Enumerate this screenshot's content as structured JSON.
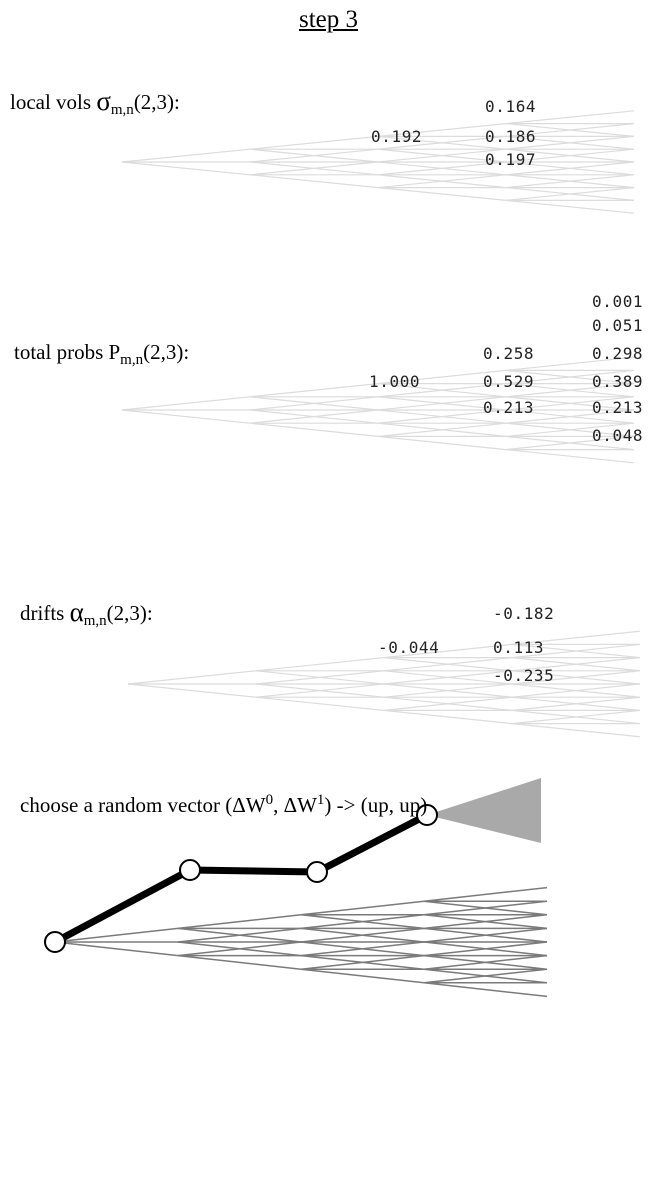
{
  "title": "step 3",
  "panels": {
    "local_vols": {
      "label_text": "local vols ",
      "symbol": "σ",
      "subscript": "m,n",
      "args": "(2,3):",
      "values": [
        "0.192",
        "0.164",
        "0.186",
        "0.197"
      ]
    },
    "total_probs": {
      "label_text": "total probs P",
      "subscript": "m,n",
      "args": "(2,3):",
      "values": [
        "1.000",
        "0.258",
        "0.529",
        "0.213",
        "0.001",
        "0.051",
        "0.298",
        "0.389",
        "0.213",
        "0.048"
      ]
    },
    "drifts": {
      "label_text": "drifts ",
      "symbol": "α",
      "subscript": "m,n",
      "args": "(2,3):",
      "values": [
        "-0.044",
        "-0.182",
        "0.113",
        "-0.235"
      ]
    },
    "random_vector": {
      "text_pre": "choose a random vector (ΔW",
      "sup0": "0",
      "text_mid": ", ΔW",
      "sup1": "1",
      "text_post": ") -> (up, up)"
    }
  },
  "colors": {
    "faint_tree": "#dcdcdc",
    "dark_tree": "#7a7a7a",
    "path": "#000000",
    "shade": "#a9a9a9"
  }
}
